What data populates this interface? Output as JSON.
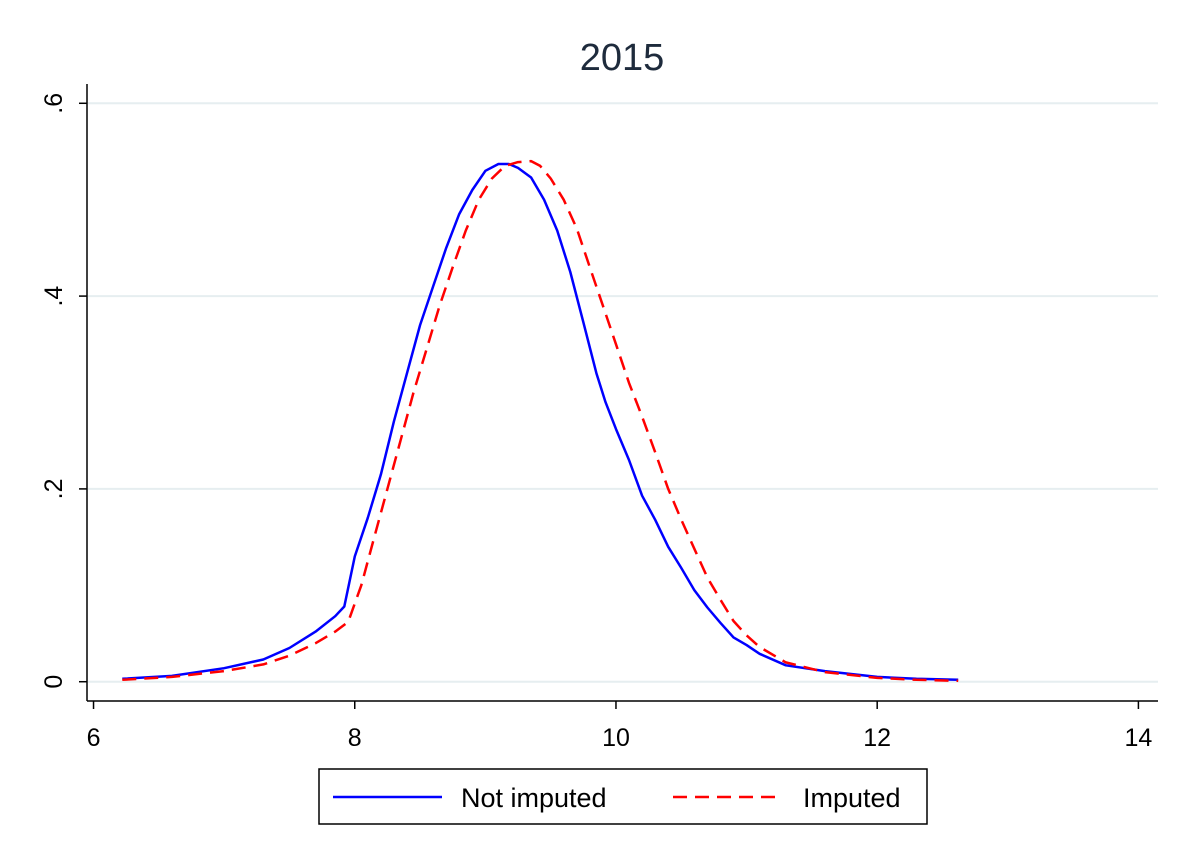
{
  "chart_data": {
    "type": "line",
    "title": "2015",
    "xlabel": "",
    "ylabel": "",
    "xlim": [
      5.95,
      14.15
    ],
    "ylim": [
      -0.02,
      0.62
    ],
    "xticks": [
      6,
      8,
      10,
      12,
      14
    ],
    "xtick_labels": [
      "6",
      "8",
      "10",
      "12",
      "14"
    ],
    "yticks": [
      0,
      0.2,
      0.4,
      0.6
    ],
    "ytick_labels": [
      "0",
      ".2",
      ".4",
      ".6"
    ],
    "grid": true,
    "legend_position": "bottom",
    "series": [
      {
        "name": "Not imputed",
        "color": "#0000ff",
        "dash": "solid",
        "x": [
          6.22,
          6.6,
          7.0,
          7.3,
          7.5,
          7.7,
          7.85,
          7.92,
          8.0,
          8.1,
          8.2,
          8.3,
          8.4,
          8.5,
          8.6,
          8.7,
          8.8,
          8.9,
          9.0,
          9.1,
          9.18,
          9.25,
          9.35,
          9.45,
          9.55,
          9.65,
          9.75,
          9.85,
          9.92,
          10.0,
          10.1,
          10.2,
          10.3,
          10.4,
          10.5,
          10.6,
          10.7,
          10.8,
          10.9,
          11.0,
          11.1,
          11.3,
          11.6,
          12.0,
          12.3,
          12.62
        ],
        "values": [
          0.003,
          0.006,
          0.014,
          0.023,
          0.035,
          0.052,
          0.068,
          0.078,
          0.13,
          0.17,
          0.215,
          0.27,
          0.32,
          0.37,
          0.41,
          0.45,
          0.485,
          0.51,
          0.53,
          0.537,
          0.537,
          0.533,
          0.523,
          0.5,
          0.468,
          0.425,
          0.373,
          0.32,
          0.29,
          0.262,
          0.23,
          0.193,
          0.168,
          0.14,
          0.118,
          0.095,
          0.077,
          0.061,
          0.046,
          0.038,
          0.029,
          0.017,
          0.011,
          0.005,
          0.003,
          0.002
        ]
      },
      {
        "name": "Imputed",
        "color": "#ff0000",
        "dash": "dashed",
        "x": [
          6.22,
          6.6,
          7.0,
          7.3,
          7.5,
          7.7,
          7.85,
          7.95,
          8.05,
          8.15,
          8.25,
          8.35,
          8.45,
          8.55,
          8.65,
          8.75,
          8.85,
          8.95,
          9.05,
          9.15,
          9.25,
          9.35,
          9.42,
          9.5,
          9.6,
          9.7,
          9.8,
          9.9,
          10.0,
          10.1,
          10.2,
          10.3,
          10.4,
          10.5,
          10.6,
          10.7,
          10.8,
          10.9,
          11.0,
          11.1,
          11.3,
          11.6,
          12.0,
          12.3,
          12.62
        ],
        "values": [
          0.002,
          0.005,
          0.011,
          0.018,
          0.027,
          0.04,
          0.052,
          0.062,
          0.1,
          0.15,
          0.2,
          0.25,
          0.3,
          0.345,
          0.39,
          0.43,
          0.468,
          0.5,
          0.522,
          0.535,
          0.539,
          0.54,
          0.535,
          0.522,
          0.5,
          0.47,
          0.43,
          0.39,
          0.35,
          0.31,
          0.275,
          0.238,
          0.2,
          0.168,
          0.138,
          0.108,
          0.085,
          0.063,
          0.048,
          0.036,
          0.02,
          0.01,
          0.004,
          0.002,
          0.001
        ]
      }
    ]
  }
}
